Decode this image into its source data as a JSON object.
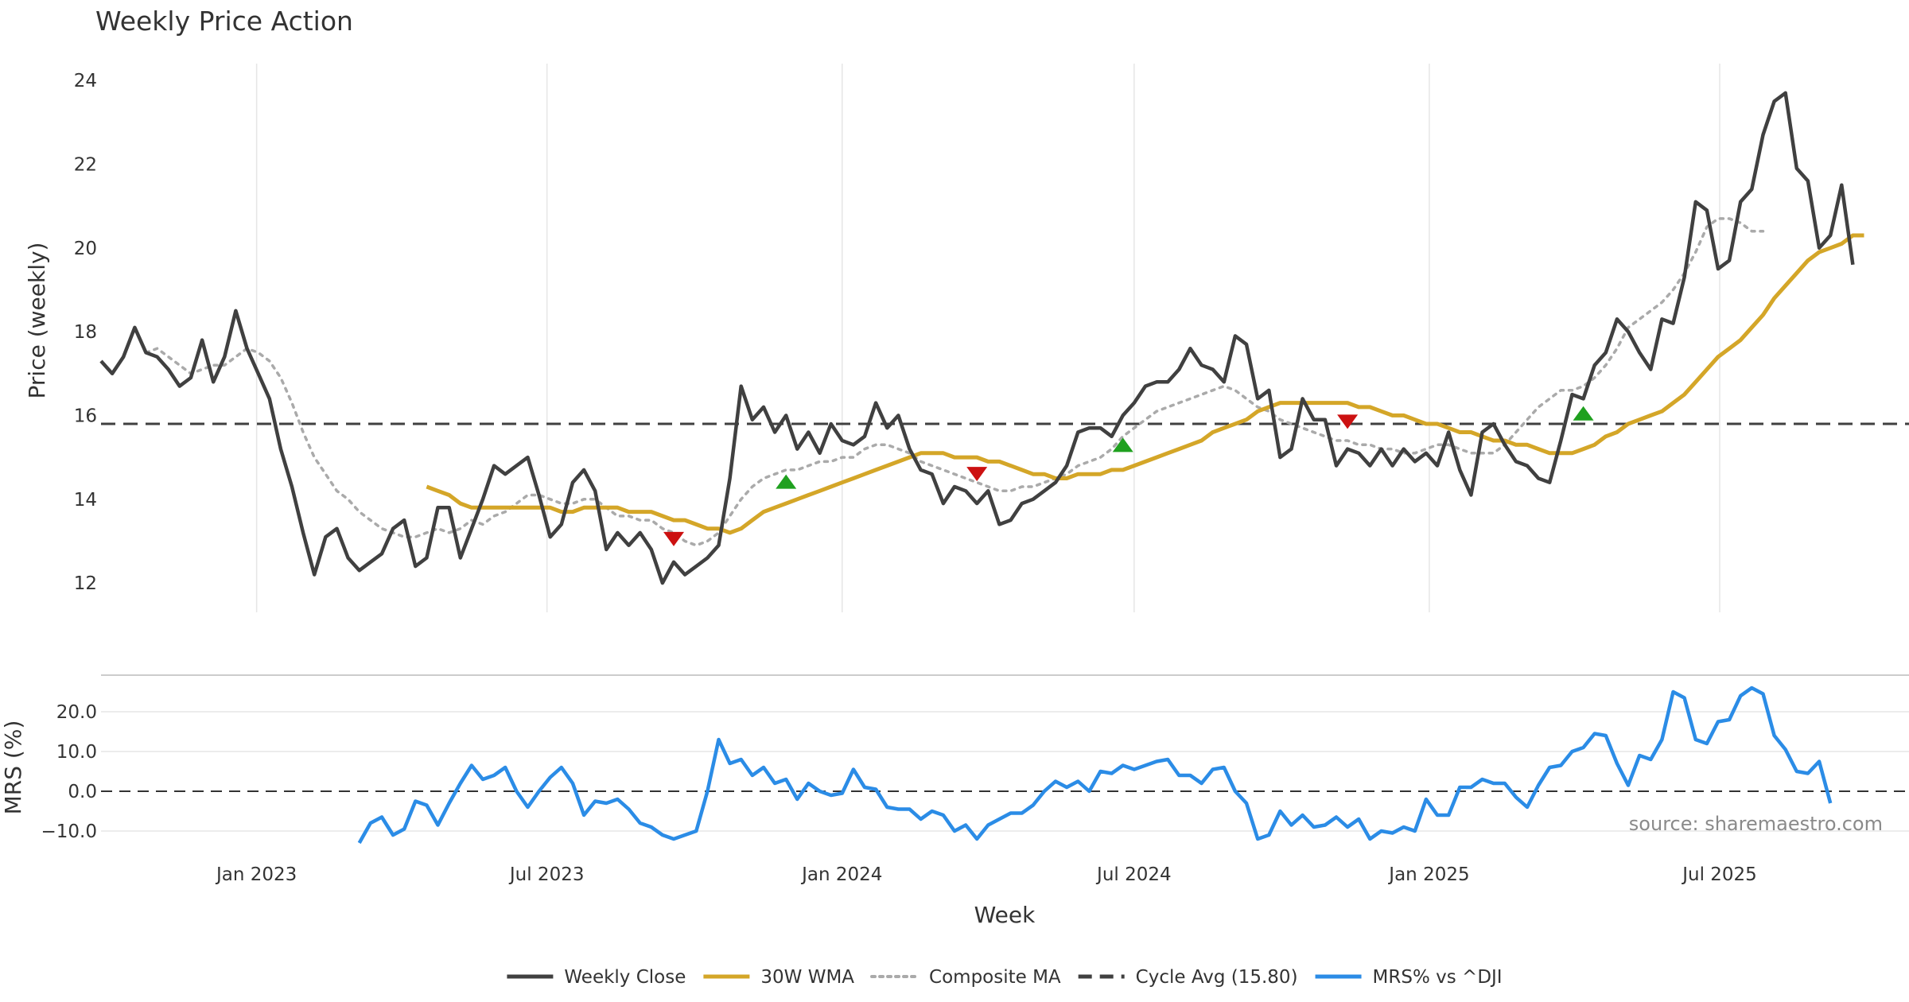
{
  "chart_data": [
    {
      "type": "line",
      "panel": "price",
      "title": "Weekly Price Action",
      "ylabel": "Price (weekly)",
      "xlabel": "Week",
      "ylim": [
        11.3,
        24.4
      ],
      "y_ticks": [
        12,
        14,
        16,
        18,
        20,
        22,
        24
      ],
      "x_range": [
        "2022-09-26",
        "2025-10-27"
      ],
      "x_ticks": [
        {
          "date": "2023-01-01",
          "label": "Jan 2023"
        },
        {
          "date": "2023-07-01",
          "label": "Jul 2023"
        },
        {
          "date": "2024-01-01",
          "label": "Jan 2024"
        },
        {
          "date": "2024-07-01",
          "label": "Jul 2024"
        },
        {
          "date": "2025-01-01",
          "label": "Jan 2025"
        },
        {
          "date": "2025-07-01",
          "label": "Jul 2025"
        }
      ],
      "grid": "vertical",
      "week_start": "2022-09-26",
      "series": [
        {
          "name": "Weekly Close",
          "color": "#404040",
          "style": "solid",
          "start_index": 0,
          "values": [
            17.3,
            17.0,
            17.4,
            18.1,
            17.5,
            17.4,
            17.1,
            16.7,
            16.9,
            17.8,
            16.8,
            17.4,
            18.5,
            17.6,
            17.0,
            16.4,
            15.2,
            14.3,
            13.2,
            12.2,
            13.1,
            13.3,
            12.6,
            12.3,
            12.5,
            12.7,
            13.3,
            13.5,
            12.4,
            12.6,
            13.8,
            13.8,
            12.6,
            13.3,
            14.0,
            14.8,
            14.6,
            14.8,
            15.0,
            14.1,
            13.1,
            13.4,
            14.4,
            14.7,
            14.2,
            12.8,
            13.2,
            12.9,
            13.2,
            12.8,
            12.0,
            12.5,
            12.2,
            12.4,
            12.6,
            12.9,
            14.5,
            16.7,
            15.9,
            16.2,
            15.6,
            16.0,
            15.2,
            15.6,
            15.1,
            15.8,
            15.4,
            15.3,
            15.5,
            16.3,
            15.7,
            16.0,
            15.2,
            14.7,
            14.6,
            13.9,
            14.3,
            14.2,
            13.9,
            14.2,
            13.4,
            13.5,
            13.9,
            14.0,
            14.2,
            14.4,
            14.8,
            15.6,
            15.7,
            15.7,
            15.5,
            16.0,
            16.3,
            16.7,
            16.8,
            16.8,
            17.1,
            17.6,
            17.2,
            17.1,
            16.8,
            17.9,
            17.7,
            16.4,
            16.6,
            15.0,
            15.2,
            16.4,
            15.9,
            15.9,
            14.8,
            15.2,
            15.1,
            14.8,
            15.2,
            14.8,
            15.2,
            14.9,
            15.1,
            14.8,
            15.6,
            14.7,
            14.1,
            15.6,
            15.8,
            15.3,
            14.9,
            14.8,
            14.5,
            14.4,
            15.4,
            16.5,
            16.4,
            17.2,
            17.5,
            18.3,
            18.0,
            17.5,
            17.1,
            18.3,
            18.2,
            19.3,
            21.1,
            20.9,
            19.5,
            19.7,
            21.1,
            21.4,
            22.7,
            23.5,
            23.7,
            21.9,
            21.6,
            20.0,
            20.3,
            21.5,
            19.6
          ]
        },
        {
          "name": "30W WMA",
          "color": "#d4a628",
          "style": "solid",
          "start_index": 29,
          "values": [
            14.3,
            14.2,
            14.1,
            13.9,
            13.8,
            13.8,
            13.8,
            13.8,
            13.8,
            13.8,
            13.8,
            13.8,
            13.7,
            13.7,
            13.8,
            13.8,
            13.8,
            13.8,
            13.7,
            13.7,
            13.7,
            13.6,
            13.5,
            13.5,
            13.4,
            13.3,
            13.3,
            13.2,
            13.3,
            13.5,
            13.7,
            13.8,
            13.9,
            14.0,
            14.1,
            14.2,
            14.3,
            14.4,
            14.5,
            14.6,
            14.7,
            14.8,
            14.9,
            15.0,
            15.1,
            15.1,
            15.1,
            15.0,
            15.0,
            15.0,
            14.9,
            14.9,
            14.8,
            14.7,
            14.6,
            14.6,
            14.5,
            14.5,
            14.6,
            14.6,
            14.6,
            14.7,
            14.7,
            14.8,
            14.9,
            15.0,
            15.1,
            15.2,
            15.3,
            15.4,
            15.6,
            15.7,
            15.8,
            15.9,
            16.1,
            16.2,
            16.3,
            16.3,
            16.3,
            16.3,
            16.3,
            16.3,
            16.3,
            16.2,
            16.2,
            16.1,
            16.0,
            16.0,
            15.9,
            15.8,
            15.8,
            15.7,
            15.6,
            15.6,
            15.5,
            15.4,
            15.4,
            15.3,
            15.3,
            15.2,
            15.1,
            15.1,
            15.1,
            15.2,
            15.3,
            15.5,
            15.6,
            15.8,
            15.9,
            16.0,
            16.1,
            16.3,
            16.5,
            16.8,
            17.1,
            17.4,
            17.6,
            17.8,
            18.1,
            18.4,
            18.8,
            19.1,
            19.4,
            19.7,
            19.9,
            20.0,
            20.1,
            20.3,
            20.3
          ]
        },
        {
          "name": "Composite MA",
          "color": "#aaaaaa",
          "style": "dotted",
          "start_index": 4,
          "values": [
            17.5,
            17.6,
            17.4,
            17.2,
            17.0,
            17.1,
            17.2,
            17.2,
            17.4,
            17.6,
            17.5,
            17.3,
            16.9,
            16.3,
            15.6,
            15.0,
            14.6,
            14.2,
            14.0,
            13.7,
            13.5,
            13.3,
            13.2,
            13.1,
            13.1,
            13.2,
            13.3,
            13.2,
            13.3,
            13.5,
            13.4,
            13.6,
            13.7,
            13.9,
            14.1,
            14.1,
            14.0,
            13.9,
            13.9,
            14.0,
            14.0,
            13.8,
            13.6,
            13.6,
            13.5,
            13.5,
            13.3,
            13.2,
            13.0,
            12.9,
            13.0,
            13.2,
            13.6,
            14.0,
            14.3,
            14.5,
            14.6,
            14.7,
            14.7,
            14.8,
            14.9,
            14.9,
            15.0,
            15.0,
            15.2,
            15.3,
            15.3,
            15.2,
            15.1,
            14.9,
            14.8,
            14.7,
            14.6,
            14.5,
            14.4,
            14.3,
            14.2,
            14.2,
            14.3,
            14.3,
            14.4,
            14.5,
            14.6,
            14.8,
            14.9,
            15.0,
            15.2,
            15.5,
            15.7,
            15.9,
            16.1,
            16.2,
            16.3,
            16.4,
            16.5,
            16.6,
            16.7,
            16.6,
            16.4,
            16.2,
            16.1,
            15.9,
            15.8,
            15.7,
            15.6,
            15.5,
            15.4,
            15.4,
            15.3,
            15.3,
            15.2,
            15.2,
            15.1,
            15.1,
            15.2,
            15.3,
            15.3,
            15.2,
            15.1,
            15.1,
            15.1,
            15.3,
            15.6,
            15.9,
            16.2,
            16.4,
            16.6,
            16.6,
            16.7,
            16.9,
            17.2,
            17.6,
            18.1,
            18.3,
            18.5,
            18.7,
            19.0,
            19.4,
            19.9,
            20.5,
            20.7,
            20.7,
            20.6,
            20.4,
            20.4
          ]
        },
        {
          "name": "Cycle Avg (15.80)",
          "color": "#404040",
          "style": "dashed",
          "constant": 15.8
        }
      ],
      "markers": [
        {
          "type": "sell",
          "week": 51,
          "value": 13.05,
          "color": "#cc1111"
        },
        {
          "type": "buy",
          "week": 61,
          "value": 14.42,
          "color": "#1fa01f"
        },
        {
          "type": "sell",
          "week": 78,
          "value": 14.6,
          "color": "#cc1111"
        },
        {
          "type": "buy",
          "week": 91,
          "value": 15.3,
          "color": "#1fa01f"
        },
        {
          "type": "sell",
          "week": 111,
          "value": 15.85,
          "color": "#cc1111"
        },
        {
          "type": "buy",
          "week": 132,
          "value": 16.05,
          "color": "#1fa01f"
        }
      ]
    },
    {
      "type": "line",
      "panel": "mrs",
      "ylabel": "MRS (%)",
      "ylim": [
        -15,
        28
      ],
      "y_ticks": [
        -10,
        0,
        10,
        20
      ],
      "y_tick_labels": [
        "−10.0",
        "0.0",
        "10.0",
        "20.0"
      ],
      "zero_line": true,
      "series": [
        {
          "name": "MRS% vs ^DJI",
          "color": "#2b8ce6",
          "start_index": 23,
          "values": [
            -13,
            -8,
            -6.5,
            -11,
            -9.5,
            -2.5,
            -3.5,
            -8.5,
            -3,
            2,
            6.5,
            3,
            4,
            6,
            0,
            -4,
            0,
            3.5,
            6,
            2,
            -6,
            -2.5,
            -3,
            -2,
            -4.5,
            -8,
            -9,
            -11,
            -12,
            -11,
            -10,
            0,
            13,
            7,
            8,
            4,
            6,
            2,
            3,
            -2,
            2,
            0,
            -1,
            -0.5,
            5.5,
            1,
            0.5,
            -4,
            -4.5,
            -4.5,
            -7,
            -5,
            -6,
            -10,
            -8.5,
            -12,
            -8.5,
            -7,
            -5.5,
            -5.5,
            -3.5,
            0,
            2.5,
            1,
            2.5,
            0,
            5,
            4.5,
            6.5,
            5.5,
            6.5,
            7.5,
            8,
            4,
            4,
            2,
            5.5,
            6,
            0,
            -3,
            -12,
            -11,
            -5,
            -8.5,
            -6,
            -9,
            -8.5,
            -6.5,
            -9,
            -7,
            -12,
            -10,
            -10.5,
            -9,
            -10,
            -2,
            -6,
            -6,
            1,
            1,
            3,
            2,
            2,
            -1.5,
            -4,
            1.5,
            6,
            6.5,
            10,
            11,
            14.5,
            14,
            7,
            1.5,
            9,
            8,
            13,
            25,
            23.5,
            13,
            12,
            17.5,
            18,
            24,
            26,
            24.5,
            14,
            10.5,
            5,
            4.5,
            7.5,
            -3
          ]
        }
      ]
    }
  ],
  "legend": [
    {
      "label": "Weekly Close",
      "style": "solid",
      "color": "#404040"
    },
    {
      "label": "30W WMA",
      "style": "solid",
      "color": "#d4a628"
    },
    {
      "label": "Composite MA",
      "style": "dotted",
      "color": "#aaaaaa"
    },
    {
      "label": "Cycle Avg (15.80)",
      "style": "dashed",
      "color": "#404040"
    },
    {
      "label": "MRS% vs ^DJI",
      "style": "solid",
      "color": "#2b8ce6"
    }
  ],
  "legend_placement": "bottom-center",
  "source": "source: sharemaestro.com"
}
